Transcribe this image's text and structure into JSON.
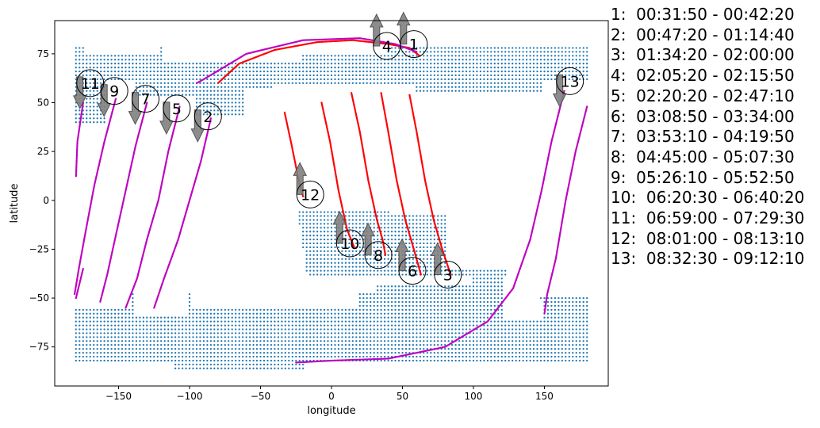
{
  "chart_data": {
    "type": "scatter",
    "title": "",
    "xlabel": "longitude",
    "ylabel": "latitude",
    "xlim": [
      -195,
      195
    ],
    "ylim": [
      -95,
      92
    ],
    "xticks": [
      -150,
      -100,
      -50,
      0,
      50,
      100,
      150
    ],
    "yticks": [
      -75,
      -50,
      -25,
      0,
      25,
      50,
      75
    ],
    "grid": false,
    "colors": {
      "coverage": "#1f77b4",
      "track_day": "#ff0000",
      "track_night": "#bf00bf",
      "arrow": "#808080",
      "marker_edge": "#000000"
    },
    "coverage_points": {
      "description_unit": "lon/lat dot grid of surface coverage",
      "lon_step": 2.5,
      "lat_step": 2.0,
      "regions": [
        {
          "lat_min": 40,
          "lat_max": 78,
          "lon_min": -180,
          "lon_max": 180,
          "exclude": "north-ocean"
        },
        {
          "lat_min": -88,
          "lat_max": -40,
          "lon_min": -180,
          "lon_max": 180,
          "exclude": "south-ocean"
        },
        {
          "lat_min": -45,
          "lat_max": 0,
          "lon_min": -25,
          "lon_max": 125,
          "exclude": "equator-wedge"
        }
      ]
    },
    "tracks": [
      {
        "label": "1",
        "color": "day",
        "points": [
          [
            62,
            74
          ],
          [
            55,
            78
          ],
          [
            40,
            80
          ],
          [
            15,
            82
          ],
          [
            -10,
            81
          ],
          [
            -40,
            77
          ],
          [
            -65,
            70
          ],
          [
            -80,
            60
          ]
        ]
      },
      {
        "label": "2",
        "color": "night",
        "points": [
          [
            -85,
            42
          ],
          [
            -92,
            20
          ],
          [
            -100,
            0
          ],
          [
            -108,
            -20
          ],
          [
            -118,
            -40
          ],
          [
            -125,
            -55
          ]
        ]
      },
      {
        "label": "3",
        "color": "day",
        "points": [
          [
            55,
            54
          ],
          [
            60,
            35
          ],
          [
            66,
            10
          ],
          [
            72,
            -10
          ],
          [
            78,
            -25
          ],
          [
            84,
            -38
          ]
        ]
      },
      {
        "label": "4",
        "color": "night",
        "points": [
          [
            60,
            76
          ],
          [
            45,
            80
          ],
          [
            20,
            83
          ],
          [
            -20,
            82
          ],
          [
            -60,
            75
          ],
          [
            -90,
            62
          ],
          [
            -95,
            60
          ]
        ]
      },
      {
        "label": "5",
        "color": "night",
        "points": [
          [
            -107,
            48
          ],
          [
            -115,
            25
          ],
          [
            -122,
            0
          ],
          [
            -130,
            -20
          ],
          [
            -137,
            -40
          ],
          [
            -145,
            -55
          ]
        ]
      },
      {
        "label": "6",
        "color": "day",
        "points": [
          [
            35,
            55
          ],
          [
            40,
            35
          ],
          [
            46,
            10
          ],
          [
            52,
            -10
          ],
          [
            58,
            -25
          ],
          [
            63,
            -38
          ]
        ]
      },
      {
        "label": "7",
        "color": "night",
        "points": [
          [
            -130,
            50
          ],
          [
            -138,
            28
          ],
          [
            -145,
            5
          ],
          [
            -152,
            -18
          ],
          [
            -158,
            -38
          ],
          [
            -163,
            -52
          ]
        ]
      },
      {
        "label": "8",
        "color": "day",
        "points": [
          [
            14,
            55
          ],
          [
            20,
            35
          ],
          [
            26,
            10
          ],
          [
            32,
            -10
          ],
          [
            36,
            -20
          ],
          [
            38,
            -28
          ]
        ]
      },
      {
        "label": "9",
        "color": "night",
        "points": [
          [
            -152,
            52
          ],
          [
            -160,
            30
          ],
          [
            -167,
            8
          ],
          [
            -173,
            -15
          ],
          [
            -178,
            -35
          ],
          [
            -181,
            -48
          ]
        ]
      },
      {
        "label": "10",
        "color": "day",
        "points": [
          [
            -7,
            50
          ],
          [
            -1,
            30
          ],
          [
            5,
            5
          ],
          [
            11,
            -15
          ],
          [
            16,
            -24
          ]
        ]
      },
      {
        "label": "11",
        "color": "night",
        "points": [
          [
            -175,
            50
          ],
          [
            -179,
            30
          ],
          [
            -180,
            12
          ]
        ]
      },
      {
        "label": "12",
        "color": "day",
        "points": [
          [
            -33,
            45
          ],
          [
            -28,
            28
          ],
          [
            -23,
            10
          ],
          [
            -20,
            2
          ]
        ]
      },
      {
        "label": "13",
        "color": "night",
        "points": [
          [
            164,
            56
          ],
          [
            155,
            30
          ],
          [
            148,
            5
          ],
          [
            140,
            -20
          ],
          [
            128,
            -45
          ],
          [
            110,
            -62
          ],
          [
            80,
            -75
          ],
          [
            40,
            -81
          ],
          [
            0,
            -82
          ],
          [
            -25,
            -83
          ]
        ]
      },
      {
        "label": "13b",
        "color": "night",
        "points": [
          [
            180,
            48
          ],
          [
            172,
            25
          ],
          [
            165,
            0
          ],
          [
            158,
            -30
          ],
          [
            152,
            -48
          ],
          [
            150,
            -58
          ]
        ]
      },
      {
        "label": "11b",
        "color": "night",
        "points": [
          [
            -180,
            -50
          ],
          [
            -175,
            -35
          ]
        ]
      }
    ],
    "markers": [
      {
        "label": "1",
        "lon": 58,
        "lat": 80,
        "arrow": "up"
      },
      {
        "label": "2",
        "lon": -87,
        "lat": 43,
        "arrow": "down"
      },
      {
        "label": "3",
        "lon": 82,
        "lat": -38,
        "arrow": "up"
      },
      {
        "label": "4",
        "lon": 39,
        "lat": 79,
        "arrow": "up"
      },
      {
        "label": "5",
        "lon": -109,
        "lat": 47,
        "arrow": "down"
      },
      {
        "label": "6",
        "lon": 57,
        "lat": -36,
        "arrow": "up"
      },
      {
        "label": "7",
        "lon": -131,
        "lat": 52,
        "arrow": "down"
      },
      {
        "label": "8",
        "lon": 33,
        "lat": -28,
        "arrow": "up"
      },
      {
        "label": "9",
        "lon": -153,
        "lat": 56,
        "arrow": "down"
      },
      {
        "label": "10",
        "lon": 13,
        "lat": -22,
        "arrow": "up"
      },
      {
        "label": "11",
        "lon": -170,
        "lat": 60,
        "arrow": "down"
      },
      {
        "label": "12",
        "lon": -15,
        "lat": 3,
        "arrow": "up"
      },
      {
        "label": "13",
        "lon": 168,
        "lat": 61,
        "arrow": "down"
      }
    ],
    "legend": [
      "1:  00:31:50 - 00:42:20",
      "2:  00:47:20 - 01:14:40",
      "3:  01:34:20 - 02:00:00",
      "4:  02:05:20 - 02:15:50",
      "5:  02:20:20 - 02:47:10",
      "6:  03:08:50 - 03:34:00",
      "7:  03:53:10 - 04:19:50",
      "8:  04:45:00 - 05:07:30",
      "9:  05:26:10 - 05:52:50",
      "10:  06:20:30 - 06:40:20",
      "11:  06:59:00 - 07:29:30",
      "12:  08:01:00 - 08:13:10",
      "13:  08:32:30 - 09:12:10"
    ]
  }
}
